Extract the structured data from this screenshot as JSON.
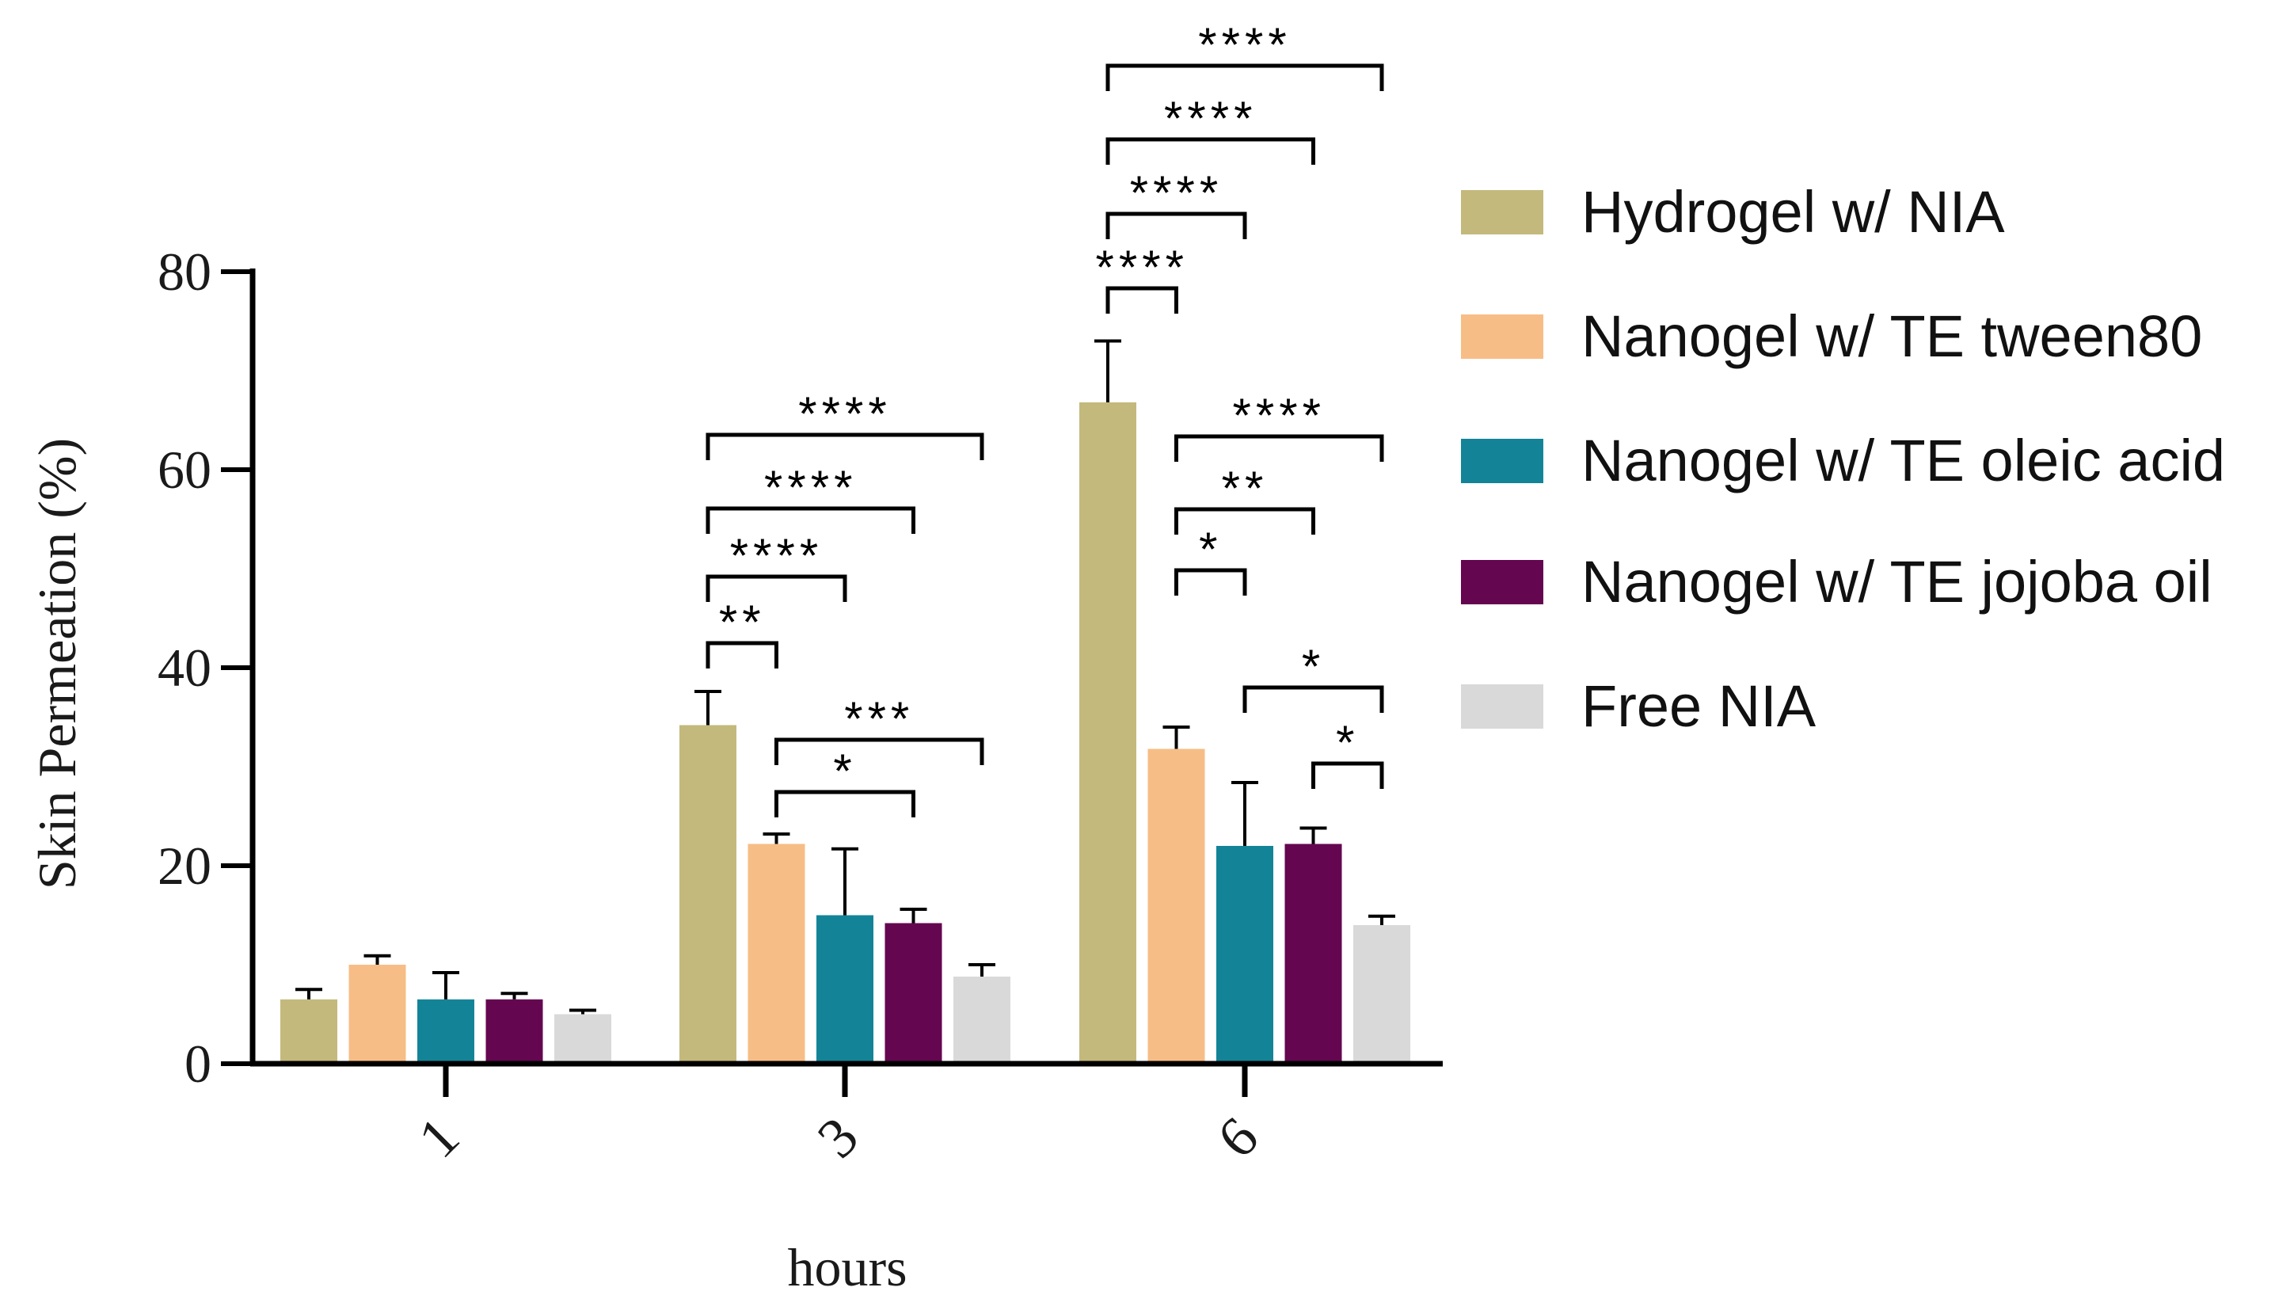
{
  "chart_data": {
    "type": "bar",
    "title": "",
    "xlabel": "hours",
    "ylabel": "Skin Permeation (%)",
    "ylim": [
      0,
      80
    ],
    "yticks": [
      "0",
      "20",
      "40",
      "60",
      "80"
    ],
    "categories": [
      "1",
      "3",
      "6"
    ],
    "legend_position": "right",
    "series": [
      {
        "name": "Hydrogel w/ NIA",
        "color": "#c4b97c",
        "values": [
          6.5,
          34.2,
          66.8
        ],
        "errors": [
          1.0,
          3.4,
          6.2
        ]
      },
      {
        "name": "Nanogel w/ TE tween80",
        "color": "#f7bd86",
        "values": [
          10.0,
          22.2,
          31.8
        ],
        "errors": [
          0.9,
          1.0,
          2.2
        ]
      },
      {
        "name": "Nanogel w/ TE oleic acid",
        "color": "#138497",
        "values": [
          6.5,
          15.0,
          22.0
        ],
        "errors": [
          2.7,
          6.7,
          6.4
        ]
      },
      {
        "name": "Nanogel w/ TE jojoba oil",
        "color": "#650650",
        "values": [
          6.5,
          14.2,
          22.2
        ],
        "errors": [
          0.6,
          1.4,
          1.6
        ]
      },
      {
        "name": "Free NIA",
        "color": "#d9d9d9",
        "values": [
          5.0,
          8.8,
          14.0
        ],
        "errors": [
          0.4,
          1.2,
          0.9
        ]
      }
    ],
    "annotations": [
      {
        "category": "3",
        "from_series": 0,
        "to_series": 1,
        "label": "**"
      },
      {
        "category": "3",
        "from_series": 0,
        "to_series": 2,
        "label": "****"
      },
      {
        "category": "3",
        "from_series": 0,
        "to_series": 3,
        "label": "****"
      },
      {
        "category": "3",
        "from_series": 0,
        "to_series": 4,
        "label": "****"
      },
      {
        "category": "3",
        "from_series": 1,
        "to_series": 3,
        "label": "*"
      },
      {
        "category": "3",
        "from_series": 1,
        "to_series": 4,
        "label": "***"
      },
      {
        "category": "6",
        "from_series": 0,
        "to_series": 1,
        "label": "****"
      },
      {
        "category": "6",
        "from_series": 0,
        "to_series": 2,
        "label": "****"
      },
      {
        "category": "6",
        "from_series": 0,
        "to_series": 3,
        "label": "****"
      },
      {
        "category": "6",
        "from_series": 0,
        "to_series": 4,
        "label": "****"
      },
      {
        "category": "6",
        "from_series": 1,
        "to_series": 2,
        "label": "*"
      },
      {
        "category": "6",
        "from_series": 1,
        "to_series": 3,
        "label": "**"
      },
      {
        "category": "6",
        "from_series": 1,
        "to_series": 4,
        "label": "****"
      },
      {
        "category": "6",
        "from_series": 2,
        "to_series": 4,
        "label": "*"
      },
      {
        "category": "6",
        "from_series": 3,
        "to_series": 4,
        "label": "*"
      }
    ]
  }
}
